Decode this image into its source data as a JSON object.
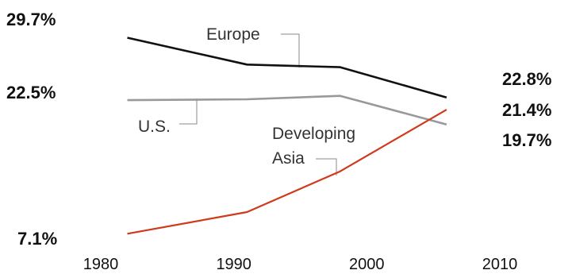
{
  "chart_data": {
    "type": "line",
    "x": [
      1982,
      1991,
      1998,
      2006
    ],
    "xticks": [
      "1980",
      "1990",
      "2000",
      "2010"
    ],
    "xlim": [
      1980,
      2010
    ],
    "ylim": [
      5,
      31
    ],
    "grid": false,
    "legend": "none",
    "series": [
      {
        "name": "Europe",
        "values": [
          29.7,
          26.6,
          26.3,
          22.8
        ],
        "color": "#111111"
      },
      {
        "name": "U.S.",
        "values": [
          22.5,
          22.6,
          23.0,
          19.7
        ],
        "color": "#999999"
      },
      {
        "name": "Developing Asia",
        "values": [
          7.1,
          9.6,
          14.3,
          21.4
        ],
        "color": "#d0391c"
      }
    ],
    "labels": {
      "europe": "Europe",
      "us": "U.S.",
      "asia_line1": "Developing",
      "asia_line2": "Asia",
      "start_europe": "29.7%",
      "start_us": "22.5%",
      "start_asia": "7.1%",
      "end_europe": "22.8%",
      "end_asia": "21.4%",
      "end_us": "19.7%"
    }
  }
}
